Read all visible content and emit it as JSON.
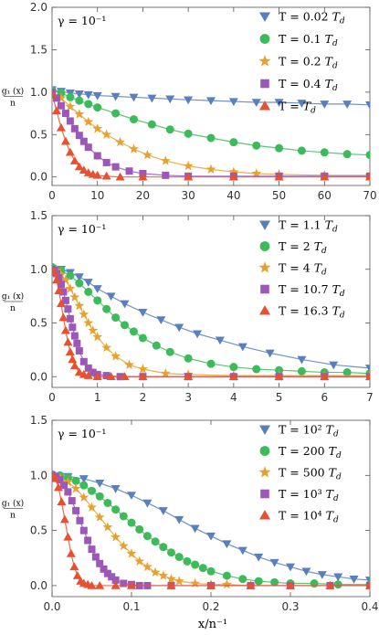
{
  "marker_colors": {
    "triangle-down": "#5b7fbe",
    "circle": "#3dbb5b",
    "star": "#e6a231",
    "square": "#9b58b8",
    "triangle-up": "#e8512f"
  },
  "chart_data": [
    {
      "type": "scatter",
      "gamma_label": "γ = 10⁻¹",
      "ylabel": "g₁ (x)",
      "ylabel_denominator": "n",
      "xlabel": "",
      "xlim": [
        0,
        70
      ],
      "ylim": [
        -0.1,
        2.0
      ],
      "xticks": [
        0,
        10,
        20,
        30,
        40,
        50,
        60,
        70
      ],
      "yticks": [
        0.0,
        0.5,
        1.0,
        1.5,
        2.0
      ],
      "yticklabels": [
        "0.0",
        "0.5",
        "1.0",
        "1.5",
        "2.0"
      ],
      "legend_position": "top-right",
      "series": [
        {
          "name": "T = 0.02 Tₐ",
          "label_main": "T = 0.02 ",
          "label_italic": "T",
          "label_sub": "d",
          "marker": "triangle-down",
          "color": "#5b7fbe",
          "x": [
            0,
            2,
            4,
            6,
            8,
            10,
            14,
            18,
            22,
            26,
            30,
            35,
            40,
            45,
            50,
            55,
            60,
            65,
            70
          ],
          "y": [
            1.03,
            1.01,
            0.99,
            0.98,
            0.97,
            0.96,
            0.95,
            0.94,
            0.93,
            0.92,
            0.91,
            0.9,
            0.89,
            0.88,
            0.88,
            0.87,
            0.86,
            0.86,
            0.85
          ]
        },
        {
          "name": "T = 0.1 Tₐ",
          "label_main": "T = 0.1 ",
          "label_italic": "T",
          "label_sub": "d",
          "marker": "circle",
          "color": "#3dbb5b",
          "x": [
            0,
            2,
            4,
            6,
            8,
            10,
            14,
            18,
            22,
            26,
            30,
            35,
            40,
            45,
            50,
            55,
            60,
            65,
            70
          ],
          "y": [
            1.02,
            0.99,
            0.94,
            0.9,
            0.86,
            0.82,
            0.75,
            0.68,
            0.62,
            0.56,
            0.51,
            0.46,
            0.41,
            0.37,
            0.34,
            0.31,
            0.29,
            0.27,
            0.26
          ]
        },
        {
          "name": "T = 0.2 Tₐ",
          "label_main": "T = 0.2 ",
          "label_italic": "T",
          "label_sub": "d",
          "marker": "star",
          "color": "#e6a231",
          "x": [
            0,
            2,
            4,
            6,
            8,
            10,
            12,
            15,
            18,
            21,
            25,
            30,
            35,
            40,
            45,
            50,
            60,
            70
          ],
          "y": [
            1.01,
            0.93,
            0.83,
            0.74,
            0.65,
            0.57,
            0.5,
            0.41,
            0.33,
            0.26,
            0.19,
            0.13,
            0.09,
            0.06,
            0.04,
            0.03,
            0.02,
            0.02
          ]
        },
        {
          "name": "T = 0.4 Tₐ",
          "label_main": "T = 0.4 ",
          "label_italic": "T",
          "label_sub": "d",
          "marker": "square",
          "color": "#9b58b8",
          "x": [
            0,
            1,
            2,
            3,
            4,
            5,
            6,
            7,
            8,
            10,
            12,
            14,
            17,
            20,
            25,
            30,
            40,
            50,
            60,
            70
          ],
          "y": [
            1.0,
            0.93,
            0.84,
            0.75,
            0.66,
            0.57,
            0.49,
            0.42,
            0.35,
            0.25,
            0.17,
            0.12,
            0.07,
            0.04,
            0.02,
            0.01,
            0.01,
            0.01,
            0.01,
            0.01
          ]
        },
        {
          "name": "T = Tₐ",
          "label_main": "T = ",
          "label_italic": "T",
          "label_sub": "d",
          "marker": "triangle-up",
          "color": "#e8512f",
          "x": [
            0,
            1,
            2,
            3,
            4,
            5,
            6,
            7,
            8,
            9,
            10,
            12,
            15,
            20,
            30,
            40,
            50,
            60,
            70
          ],
          "y": [
            0.98,
            0.78,
            0.58,
            0.42,
            0.29,
            0.19,
            0.12,
            0.08,
            0.05,
            0.03,
            0.02,
            0.01,
            0.0,
            0.0,
            0.0,
            0.0,
            0.0,
            0.0,
            0.0
          ]
        }
      ]
    },
    {
      "type": "scatter",
      "gamma_label": "γ = 10⁻¹",
      "ylabel": "g₁ (x)",
      "ylabel_denominator": "n",
      "xlabel": "",
      "xlim": [
        0,
        7
      ],
      "ylim": [
        -0.1,
        1.5
      ],
      "xticks": [
        0,
        1,
        2,
        3,
        4,
        5,
        6,
        7
      ],
      "yticks": [
        0.0,
        0.5,
        1.0,
        1.5
      ],
      "yticklabels": [
        "0.0",
        "0.5",
        "1.0",
        "1.5"
      ],
      "legend_position": "top-right",
      "series": [
        {
          "name": "T = 1.1 Tₐ",
          "label_main": "T = 1.1 ",
          "label_italic": "T",
          "label_sub": "d",
          "marker": "triangle-down",
          "color": "#5b7fbe",
          "x": [
            0,
            0.2,
            0.4,
            0.6,
            0.8,
            1.0,
            1.3,
            1.6,
            2.0,
            2.4,
            2.8,
            3.2,
            3.7,
            4.2,
            4.8,
            5.5,
            6.2,
            7.0
          ],
          "y": [
            1.01,
            1.0,
            0.97,
            0.93,
            0.88,
            0.82,
            0.75,
            0.68,
            0.6,
            0.53,
            0.46,
            0.4,
            0.34,
            0.28,
            0.22,
            0.16,
            0.11,
            0.08
          ]
        },
        {
          "name": "T = 2 Tₐ",
          "label_main": "T = 2 ",
          "label_italic": "T",
          "label_sub": "d",
          "marker": "circle",
          "color": "#3dbb5b",
          "x": [
            0,
            0.2,
            0.4,
            0.6,
            0.8,
            1.0,
            1.2,
            1.4,
            1.6,
            1.8,
            2.0,
            2.3,
            2.6,
            3.0,
            3.5,
            4.0,
            4.5,
            5.0,
            5.5,
            6.0,
            6.5,
            7.0
          ],
          "y": [
            1.02,
            0.99,
            0.94,
            0.87,
            0.79,
            0.71,
            0.63,
            0.55,
            0.48,
            0.42,
            0.36,
            0.29,
            0.23,
            0.17,
            0.12,
            0.09,
            0.07,
            0.06,
            0.05,
            0.04,
            0.04,
            0.03
          ]
        },
        {
          "name": "T = 4 Tₐ",
          "label_main": "T = 4 ",
          "label_italic": "T",
          "label_sub": "d",
          "marker": "star",
          "color": "#e6a231",
          "x": [
            0,
            0.1,
            0.2,
            0.3,
            0.4,
            0.5,
            0.6,
            0.7,
            0.8,
            0.9,
            1.0,
            1.2,
            1.4,
            1.7,
            2.0,
            2.5,
            3.0,
            4.0,
            5.0,
            6.0,
            7.0
          ],
          "y": [
            1.0,
            0.99,
            0.95,
            0.9,
            0.82,
            0.74,
            0.66,
            0.58,
            0.5,
            0.43,
            0.37,
            0.27,
            0.19,
            0.11,
            0.07,
            0.03,
            0.02,
            0.01,
            0.01,
            0.01,
            0.01
          ]
        },
        {
          "name": "T = 10.7 Tₐ",
          "label_main": "T = 10.7 ",
          "label_italic": "T",
          "label_sub": "d",
          "marker": "square",
          "color": "#9b58b8",
          "x": [
            0,
            0.05,
            0.1,
            0.15,
            0.2,
            0.25,
            0.3,
            0.35,
            0.4,
            0.45,
            0.5,
            0.55,
            0.6,
            0.7,
            0.8,
            0.9,
            1.0,
            1.2,
            1.5,
            2.0,
            3.0,
            4.0,
            5.0,
            6.0,
            7.0
          ],
          "y": [
            1.0,
            0.99,
            0.96,
            0.92,
            0.86,
            0.79,
            0.71,
            0.63,
            0.54,
            0.46,
            0.38,
            0.31,
            0.24,
            0.14,
            0.08,
            0.04,
            0.02,
            0.01,
            0.0,
            0.0,
            0.0,
            0.0,
            0.0,
            0.0,
            0.0
          ]
        },
        {
          "name": "T = 16.3 Tₐ",
          "label_main": "T = 16.3 ",
          "label_italic": "T",
          "label_sub": "d",
          "marker": "triangle-up",
          "color": "#e8512f",
          "x": [
            0,
            0.05,
            0.1,
            0.15,
            0.2,
            0.25,
            0.3,
            0.35,
            0.4,
            0.45,
            0.5,
            0.6,
            0.7,
            0.8,
            1.0,
            1.3,
            1.6,
            2.0,
            3.0,
            4.0,
            5.0,
            6.0,
            7.0
          ],
          "y": [
            1.0,
            0.97,
            0.9,
            0.8,
            0.68,
            0.55,
            0.43,
            0.32,
            0.23,
            0.16,
            0.1,
            0.04,
            0.02,
            0.01,
            0.0,
            0.0,
            0.0,
            0.0,
            0.0,
            0.0,
            0.0,
            0.0,
            0.0
          ]
        }
      ]
    },
    {
      "type": "scatter",
      "gamma_label": "γ = 10⁻¹",
      "ylabel": "g₁ (x)",
      "ylabel_denominator": "n",
      "xlabel": "x/n⁻¹",
      "xlim": [
        0,
        0.4
      ],
      "ylim": [
        -0.1,
        1.5
      ],
      "xticks": [
        0.0,
        0.1,
        0.2,
        0.3,
        0.4
      ],
      "xticklabels": [
        "0.0",
        "0.1",
        "0.2",
        "0.3",
        "0.4"
      ],
      "yticks": [
        0.0,
        0.5,
        1.0,
        1.5
      ],
      "yticklabels": [
        "0.0",
        "0.5",
        "1.0",
        "1.5"
      ],
      "legend_position": "top-right",
      "series": [
        {
          "name": "T = 10² Tₐ",
          "label_main": "T = 10² ",
          "label_italic": "T",
          "label_sub": "d",
          "marker": "triangle-down",
          "color": "#5b7fbe",
          "x": [
            0,
            0.02,
            0.04,
            0.06,
            0.08,
            0.1,
            0.12,
            0.14,
            0.16,
            0.18,
            0.2,
            0.22,
            0.24,
            0.26,
            0.28,
            0.3,
            0.32,
            0.34,
            0.36,
            0.38,
            0.4
          ],
          "y": [
            1.0,
            0.99,
            0.97,
            0.93,
            0.88,
            0.82,
            0.75,
            0.68,
            0.6,
            0.52,
            0.45,
            0.38,
            0.32,
            0.26,
            0.21,
            0.17,
            0.13,
            0.1,
            0.08,
            0.06,
            0.05
          ]
        },
        {
          "name": "T = 200 Tₐ",
          "label_main": "T = 200 ",
          "label_italic": "T",
          "label_sub": "d",
          "marker": "circle",
          "color": "#3dbb5b",
          "x": [
            0,
            0.01,
            0.02,
            0.03,
            0.04,
            0.05,
            0.06,
            0.07,
            0.08,
            0.09,
            0.1,
            0.11,
            0.12,
            0.13,
            0.14,
            0.15,
            0.16,
            0.17,
            0.18,
            0.19,
            0.2,
            0.22,
            0.24,
            0.26,
            0.28,
            0.3,
            0.33,
            0.36,
            0.4
          ],
          "y": [
            1.01,
            1.0,
            0.98,
            0.95,
            0.91,
            0.86,
            0.81,
            0.75,
            0.69,
            0.63,
            0.57,
            0.51,
            0.45,
            0.4,
            0.35,
            0.3,
            0.26,
            0.22,
            0.19,
            0.16,
            0.13,
            0.09,
            0.06,
            0.04,
            0.03,
            0.02,
            0.02,
            0.01,
            0.01
          ]
        },
        {
          "name": "T = 500 Tₐ",
          "label_main": "T = 500 ",
          "label_italic": "T",
          "label_sub": "d",
          "marker": "star",
          "color": "#e6a231",
          "x": [
            0,
            0.01,
            0.02,
            0.03,
            0.04,
            0.05,
            0.06,
            0.07,
            0.08,
            0.09,
            0.1,
            0.11,
            0.12,
            0.13,
            0.14,
            0.15,
            0.16,
            0.18,
            0.2,
            0.22,
            0.25,
            0.3,
            0.35,
            0.4
          ],
          "y": [
            1.0,
            0.98,
            0.94,
            0.88,
            0.8,
            0.71,
            0.62,
            0.53,
            0.44,
            0.36,
            0.29,
            0.22,
            0.17,
            0.12,
            0.09,
            0.06,
            0.04,
            0.02,
            0.01,
            0.01,
            0.0,
            0.0,
            0.0,
            0.0
          ]
        },
        {
          "name": "T = 10³ Tₐ",
          "label_main": "T = 10³ ",
          "label_italic": "T",
          "label_sub": "d",
          "marker": "square",
          "color": "#9b58b8",
          "x": [
            0,
            0.005,
            0.01,
            0.015,
            0.02,
            0.025,
            0.03,
            0.035,
            0.04,
            0.045,
            0.05,
            0.055,
            0.06,
            0.065,
            0.07,
            0.075,
            0.08,
            0.09,
            0.1,
            0.11,
            0.12,
            0.15,
            0.2,
            0.25,
            0.3,
            0.35,
            0.4
          ],
          "y": [
            1.0,
            0.99,
            0.96,
            0.91,
            0.85,
            0.77,
            0.68,
            0.59,
            0.5,
            0.41,
            0.33,
            0.26,
            0.2,
            0.15,
            0.11,
            0.08,
            0.05,
            0.02,
            0.01,
            0.0,
            0.0,
            0.0,
            0.0,
            0.0,
            0.0,
            0.0,
            0.0
          ]
        },
        {
          "name": "T = 10⁴ Tₐ",
          "label_main": "T = 10⁴ ",
          "label_italic": "T",
          "label_sub": "d",
          "marker": "triangle-up",
          "color": "#e8512f",
          "x": [
            0,
            0.004,
            0.008,
            0.012,
            0.016,
            0.02,
            0.024,
            0.028,
            0.032,
            0.036,
            0.04,
            0.045,
            0.05,
            0.06,
            0.08,
            0.1,
            0.15,
            0.2,
            0.25,
            0.3,
            0.35,
            0.4
          ],
          "y": [
            1.0,
            0.97,
            0.89,
            0.76,
            0.6,
            0.44,
            0.29,
            0.17,
            0.09,
            0.04,
            0.02,
            0.01,
            0.0,
            0.0,
            0.0,
            0.0,
            0.0,
            0.0,
            0.0,
            0.0,
            0.0,
            0.0
          ]
        }
      ]
    }
  ]
}
